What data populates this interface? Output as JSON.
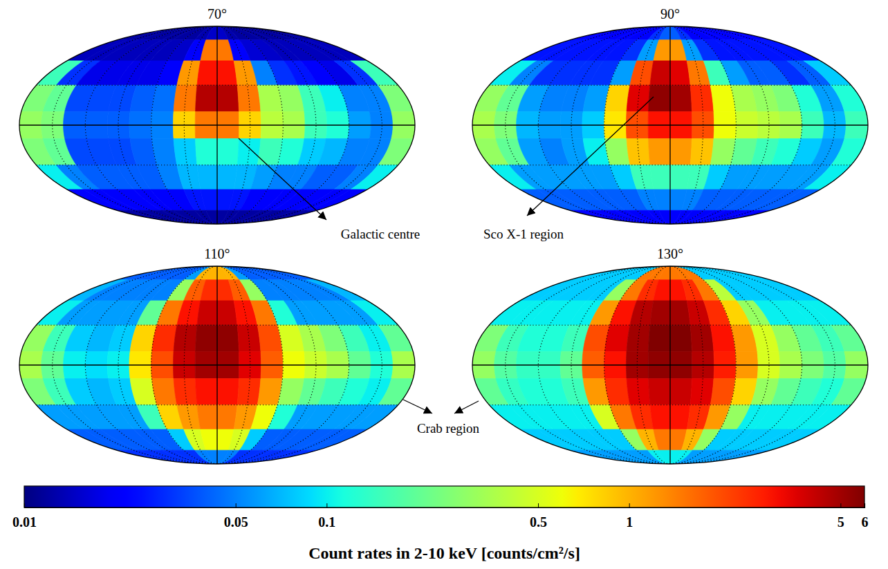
{
  "chart_data": [
    {
      "type": "heatmap",
      "title": "70°",
      "x": [
        -180,
        -160,
        -140,
        -120,
        -100,
        -80,
        -60,
        -40,
        -20,
        0,
        20,
        40,
        60,
        80,
        100,
        120,
        140,
        160,
        180
      ],
      "y": [
        90,
        70,
        50,
        30,
        10,
        -10,
        -30,
        -50,
        -70,
        -90
      ],
      "cells": [
        [
          0.012,
          0.012,
          0.012,
          0.012,
          0.012,
          0.012,
          0.012,
          0.013,
          0.015,
          0.015,
          0.013,
          0.012,
          0.012,
          0.012,
          0.012,
          0.012,
          0.012,
          0.012
        ],
        [
          0.014,
          0.014,
          0.014,
          0.014,
          0.014,
          0.014,
          0.015,
          0.02,
          1.5,
          1.5,
          0.02,
          0.016,
          0.015,
          0.014,
          0.014,
          0.014,
          0.014,
          0.014
        ],
        [
          0.15,
          0.03,
          0.018,
          0.018,
          0.018,
          0.018,
          0.02,
          1.2,
          3,
          3,
          1.2,
          0.05,
          0.03,
          0.025,
          0.02,
          0.018,
          0.03,
          0.15
        ],
        [
          0.25,
          0.2,
          0.035,
          0.035,
          0.035,
          0.04,
          0.045,
          1.5,
          4.5,
          4.5,
          1.5,
          0.35,
          0.3,
          0.15,
          0.1,
          0.05,
          0.05,
          0.25
        ],
        [
          0.3,
          0.25,
          0.04,
          0.04,
          0.04,
          0.045,
          0.05,
          0.8,
          1.5,
          1.5,
          0.8,
          0.4,
          0.35,
          0.15,
          0.12,
          0.06,
          0.05,
          0.3
        ],
        [
          0.25,
          0.2,
          0.035,
          0.035,
          0.035,
          0.04,
          0.05,
          0.08,
          0.12,
          0.12,
          0.1,
          0.15,
          0.12,
          0.08,
          0.07,
          0.05,
          0.05,
          0.25
        ],
        [
          0.1,
          0.05,
          0.04,
          0.04,
          0.04,
          0.04,
          0.05,
          0.07,
          0.07,
          0.07,
          0.07,
          0.06,
          0.05,
          0.05,
          0.04,
          0.04,
          0.05,
          0.1
        ],
        [
          0.02,
          0.02,
          0.02,
          0.02,
          0.02,
          0.02,
          0.02,
          0.025,
          0.025,
          0.025,
          0.025,
          0.02,
          0.02,
          0.02,
          0.02,
          0.02,
          0.02,
          0.02
        ],
        [
          0.012,
          0.012,
          0.012,
          0.012,
          0.012,
          0.012,
          0.012,
          0.012,
          0.012,
          0.012,
          0.012,
          0.012,
          0.012,
          0.012,
          0.012,
          0.012,
          0.012,
          0.012
        ]
      ],
      "xlim": [
        -180,
        180
      ],
      "ylim": [
        -90,
        90
      ],
      "xticks": [
        -150,
        -120,
        -90,
        -60,
        -30,
        0,
        30,
        60,
        90,
        120,
        150
      ],
      "yticks": [
        -30,
        0,
        30
      ],
      "grid": true,
      "tick_labels": false
    },
    {
      "type": "heatmap",
      "title": "90°",
      "x": [
        -180,
        -160,
        -140,
        -120,
        -100,
        -80,
        -60,
        -40,
        -20,
        0,
        20,
        40,
        60,
        80,
        100,
        120,
        140,
        160,
        180
      ],
      "y": [
        90,
        70,
        50,
        30,
        10,
        -10,
        -30,
        -50,
        -70,
        -90
      ],
      "cells": [
        [
          0.02,
          0.02,
          0.02,
          0.02,
          0.02,
          0.02,
          0.02,
          0.03,
          0.04,
          0.04,
          0.03,
          0.02,
          0.02,
          0.02,
          0.02,
          0.02,
          0.02,
          0.02
        ],
        [
          0.025,
          0.025,
          0.025,
          0.025,
          0.025,
          0.025,
          0.03,
          0.06,
          1.2,
          1.2,
          0.06,
          0.03,
          0.025,
          0.025,
          0.025,
          0.025,
          0.025,
          0.025
        ],
        [
          0.1,
          0.05,
          0.03,
          0.03,
          0.03,
          0.03,
          0.06,
          2,
          4,
          3.5,
          1.5,
          0.15,
          0.06,
          0.04,
          0.04,
          0.03,
          0.04,
          0.08
        ],
        [
          0.3,
          0.2,
          0.06,
          0.05,
          0.05,
          0.06,
          0.8,
          3.5,
          5.5,
          5,
          2.5,
          0.6,
          0.35,
          0.3,
          0.25,
          0.12,
          0.06,
          0.12
        ],
        [
          0.35,
          0.25,
          0.07,
          0.06,
          0.06,
          0.08,
          0.7,
          2,
          3,
          3,
          2,
          0.6,
          0.45,
          0.4,
          0.35,
          0.15,
          0.07,
          0.15
        ],
        [
          0.3,
          0.2,
          0.06,
          0.05,
          0.06,
          0.1,
          0.3,
          0.9,
          1.2,
          1.2,
          0.9,
          0.3,
          0.2,
          0.15,
          0.12,
          0.08,
          0.06,
          0.12
        ],
        [
          0.1,
          0.06,
          0.06,
          0.06,
          0.06,
          0.06,
          0.08,
          0.15,
          0.15,
          0.15,
          0.15,
          0.08,
          0.06,
          0.06,
          0.06,
          0.06,
          0.06,
          0.1
        ],
        [
          0.04,
          0.04,
          0.04,
          0.04,
          0.04,
          0.04,
          0.04,
          0.05,
          0.05,
          0.05,
          0.05,
          0.04,
          0.04,
          0.04,
          0.04,
          0.04,
          0.04,
          0.04
        ],
        [
          0.02,
          0.02,
          0.02,
          0.02,
          0.02,
          0.02,
          0.02,
          0.02,
          0.02,
          0.02,
          0.02,
          0.02,
          0.02,
          0.02,
          0.02,
          0.02,
          0.02,
          0.02
        ]
      ],
      "xlim": [
        -180,
        180
      ],
      "ylim": [
        -90,
        90
      ],
      "xticks": [
        -150,
        -120,
        -90,
        -60,
        -30,
        0,
        30,
        60,
        90,
        120,
        150
      ],
      "yticks": [
        -30,
        0,
        30
      ],
      "grid": true,
      "tick_labels": false
    },
    {
      "type": "heatmap",
      "title": "110°",
      "x": [
        -180,
        -160,
        -140,
        -120,
        -100,
        -80,
        -60,
        -40,
        -20,
        0,
        20,
        40,
        60,
        80,
        100,
        120,
        140,
        160,
        180
      ],
      "y": [
        90,
        70,
        50,
        30,
        10,
        -10,
        -30,
        -50,
        -70,
        -90
      ],
      "cells": [
        [
          0.04,
          0.04,
          0.04,
          0.04,
          0.04,
          0.04,
          0.06,
          1,
          1,
          1,
          1,
          0.06,
          0.04,
          0.04,
          0.04,
          0.04,
          0.04,
          0.04
        ],
        [
          0.07,
          0.05,
          0.05,
          0.05,
          0.05,
          0.05,
          0.3,
          1.8,
          2.5,
          2.5,
          1.8,
          0.3,
          0.05,
          0.05,
          0.05,
          0.05,
          0.05,
          0.07
        ],
        [
          0.1,
          0.06,
          0.06,
          0.06,
          0.06,
          0.2,
          1.5,
          3,
          4,
          4,
          3,
          1.5,
          0.12,
          0.06,
          0.06,
          0.06,
          0.06,
          0.1
        ],
        [
          0.3,
          0.15,
          0.08,
          0.07,
          0.08,
          0.8,
          2.5,
          4.5,
          5.5,
          5.5,
          4,
          2,
          0.5,
          0.35,
          0.25,
          0.15,
          0.1,
          0.2
        ],
        [
          0.35,
          0.2,
          0.1,
          0.09,
          0.1,
          0.7,
          2,
          4,
          5,
          5,
          3.5,
          1.8,
          0.6,
          0.45,
          0.35,
          0.2,
          0.12,
          0.35
        ],
        [
          0.25,
          0.15,
          0.08,
          0.07,
          0.08,
          0.5,
          1.5,
          2.5,
          3,
          3,
          2.5,
          1.2,
          0.3,
          0.2,
          0.15,
          0.12,
          0.1,
          0.2
        ],
        [
          0.06,
          0.06,
          0.06,
          0.06,
          0.06,
          0.15,
          0.8,
          1.2,
          1.5,
          1.5,
          1.2,
          0.6,
          0.12,
          0.06,
          0.06,
          0.06,
          0.06,
          0.06
        ],
        [
          0.04,
          0.04,
          0.04,
          0.04,
          0.04,
          0.04,
          0.08,
          0.5,
          0.6,
          0.6,
          0.5,
          0.08,
          0.04,
          0.04,
          0.04,
          0.04,
          0.04,
          0.04
        ],
        [
          0.03,
          0.03,
          0.03,
          0.03,
          0.03,
          0.03,
          0.03,
          0.05,
          0.05,
          0.05,
          0.05,
          0.03,
          0.03,
          0.03,
          0.03,
          0.03,
          0.03,
          0.03
        ]
      ],
      "xlim": [
        -180,
        180
      ],
      "ylim": [
        -90,
        90
      ],
      "xticks": [
        -150,
        -120,
        -90,
        -60,
        -30,
        0,
        30,
        60,
        90,
        120,
        150
      ],
      "yticks": [
        -30,
        0,
        30
      ],
      "grid": true,
      "tick_labels": false
    },
    {
      "type": "heatmap",
      "title": "130°",
      "x": [
        -180,
        -160,
        -140,
        -120,
        -100,
        -80,
        -60,
        -40,
        -20,
        0,
        20,
        40,
        60,
        80,
        100,
        120,
        140,
        160,
        180
      ],
      "y": [
        90,
        70,
        50,
        30,
        10,
        -10,
        -30,
        -50,
        -70,
        -90
      ],
      "cells": [
        [
          0.08,
          0.08,
          0.08,
          0.08,
          0.08,
          0.08,
          1.5,
          1.5,
          1.5,
          1.5,
          1.5,
          1.5,
          0.08,
          0.08,
          0.08,
          0.08,
          0.08,
          0.08
        ],
        [
          0.08,
          0.08,
          0.08,
          0.08,
          0.08,
          0.3,
          1.5,
          2.5,
          3,
          3,
          2.5,
          1.5,
          0.4,
          0.08,
          0.08,
          0.08,
          0.08,
          0.08
        ],
        [
          0.1,
          0.1,
          0.1,
          0.1,
          0.1,
          1.2,
          3,
          4.5,
          5,
          5,
          4,
          2.5,
          0.8,
          0.3,
          0.1,
          0.1,
          0.1,
          0.1
        ],
        [
          0.25,
          0.15,
          0.12,
          0.12,
          0.15,
          2,
          3.5,
          5,
          6,
          6,
          5,
          3,
          1.2,
          0.5,
          0.3,
          0.2,
          0.15,
          0.2
        ],
        [
          0.3,
          0.18,
          0.14,
          0.14,
          0.2,
          1.8,
          3,
          5,
          5.5,
          5.5,
          4.5,
          2.8,
          1.2,
          0.5,
          0.35,
          0.25,
          0.18,
          0.3
        ],
        [
          0.2,
          0.14,
          0.12,
          0.12,
          0.15,
          1.2,
          2.5,
          3.5,
          4,
          4,
          3.5,
          2,
          0.8,
          0.3,
          0.2,
          0.15,
          0.12,
          0.2
        ],
        [
          0.1,
          0.1,
          0.1,
          0.1,
          0.1,
          0.5,
          1.5,
          2.5,
          3,
          3,
          2.5,
          1.2,
          0.3,
          0.1,
          0.1,
          0.1,
          0.1,
          0.1
        ],
        [
          0.08,
          0.08,
          0.08,
          0.08,
          0.08,
          0.08,
          0.3,
          1,
          1.5,
          1.5,
          1,
          0.3,
          0.08,
          0.08,
          0.08,
          0.08,
          0.08,
          0.08
        ],
        [
          0.06,
          0.06,
          0.06,
          0.06,
          0.06,
          0.06,
          0.06,
          0.1,
          0.1,
          0.1,
          0.1,
          0.06,
          0.06,
          0.06,
          0.06,
          0.06,
          0.06,
          0.06
        ]
      ],
      "xlim": [
        -180,
        180
      ],
      "ylim": [
        -90,
        90
      ],
      "xticks": [
        -150,
        -120,
        -90,
        -60,
        -30,
        0,
        30,
        60,
        90,
        120,
        150
      ],
      "yticks": [
        -30,
        0,
        30
      ],
      "grid": true,
      "tick_labels": false
    }
  ],
  "colorbar": {
    "title": "Count rates in 2-10 keV [counts/cm²/s]",
    "range": [
      0.01,
      6
    ],
    "ticks": [
      0.01,
      0.05,
      0.1,
      0.5,
      1,
      5,
      6
    ],
    "log": true
  },
  "annotations": [
    {
      "text": "Galactic centre"
    },
    {
      "text": "Sco X-1 region"
    },
    {
      "text": "Crab region"
    }
  ]
}
